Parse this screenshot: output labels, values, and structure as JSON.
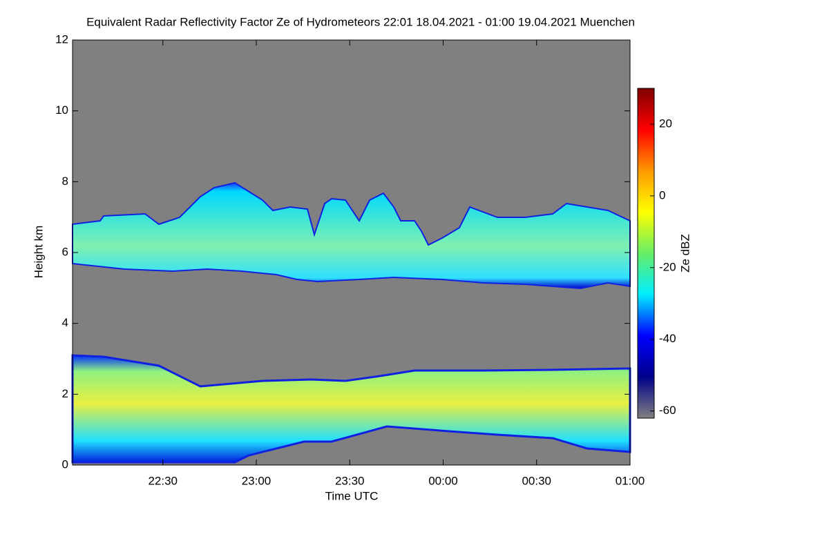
{
  "chart_data": {
    "type": "heatmap",
    "title": "Equivalent Radar Reflectivity Factor Ze of Hydrometeors   22:01 18.04.2021 - 01:00 19.04.2021 Muenchen",
    "xlabel": "Time UTC",
    "ylabel": "Height km",
    "colorbar_label": "Ze dBZ",
    "xlim": [
      1321,
      1500
    ],
    "xticks": [
      {
        "value": 1350,
        "label": "22:30"
      },
      {
        "value": 1380,
        "label": "23:00"
      },
      {
        "value": 1410,
        "label": "23:30"
      },
      {
        "value": 1440,
        "label": "00:00"
      },
      {
        "value": 1470,
        "label": "00:30"
      },
      {
        "value": 1500,
        "label": "01:00"
      }
    ],
    "ylim": [
      0,
      12
    ],
    "yticks": [
      0,
      2,
      4,
      6,
      8,
      10,
      12
    ],
    "clim": [
      -62,
      30
    ],
    "cticks": [
      -60,
      -40,
      -20,
      0,
      20
    ],
    "background": "#808080",
    "colorscale": [
      "#7f0000",
      "#ff0000",
      "#ff9900",
      "#ffff00",
      "#66ee66",
      "#00eeff",
      "#0000ff",
      "#00008b",
      "#808080"
    ]
  }
}
